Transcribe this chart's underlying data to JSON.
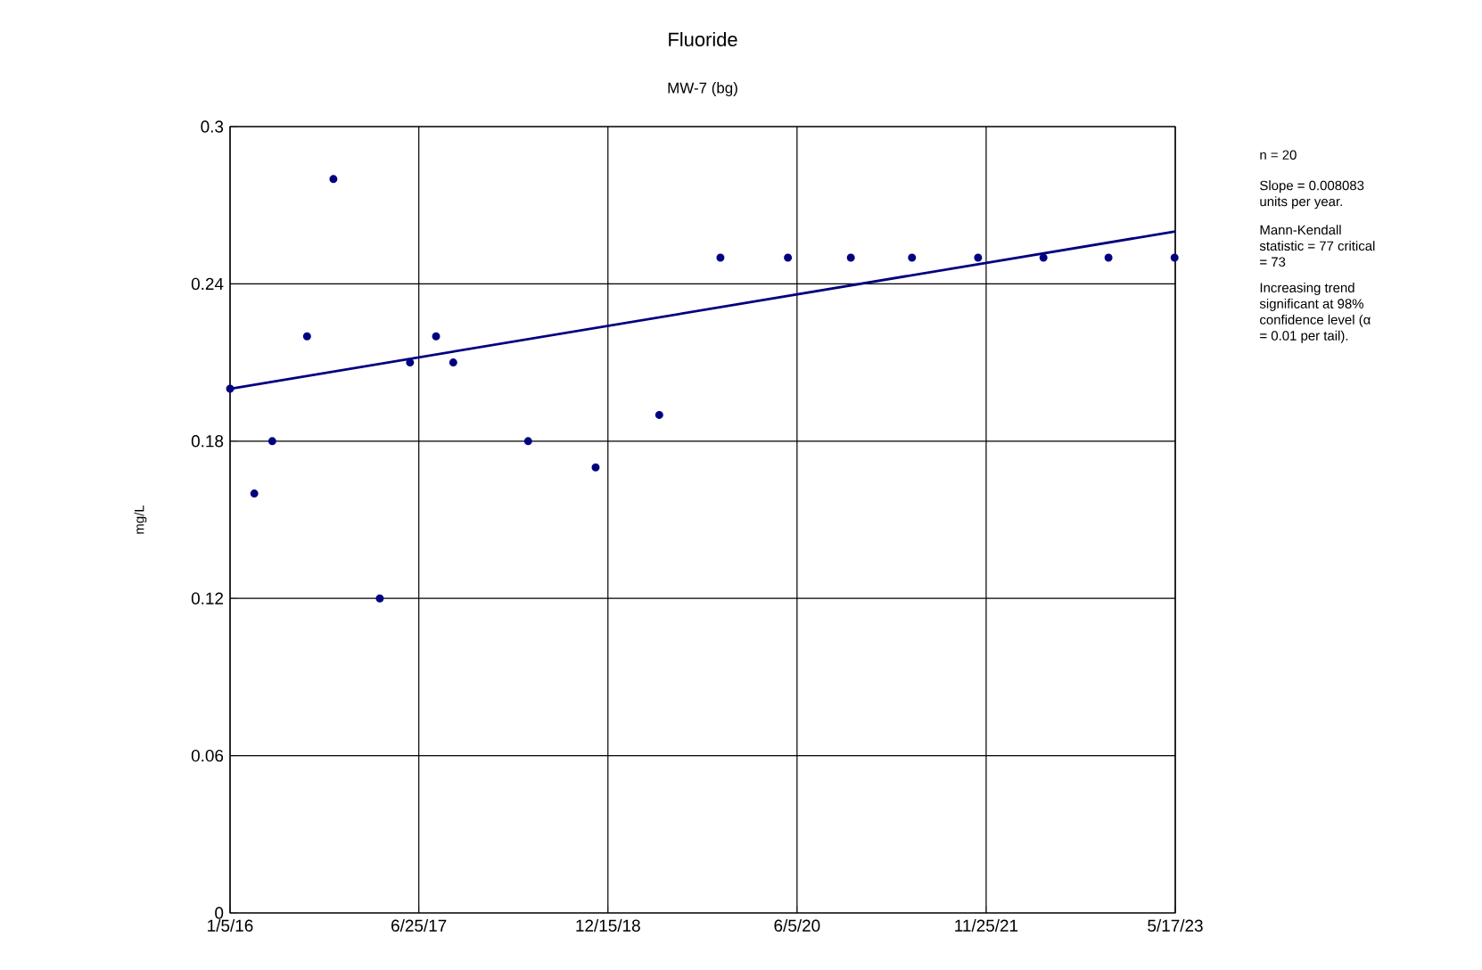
{
  "chart_data": {
    "type": "scatter",
    "title": "Fluoride",
    "subtitle": "MW-7 (bg)",
    "ylabel": "mg/L",
    "xlim": [
      "2016-01-05",
      "2023-05-17"
    ],
    "xticks": [
      {
        "value": "2016-01-05",
        "label": "1/5/16"
      },
      {
        "value": "2017-06-25",
        "label": "6/25/17"
      },
      {
        "value": "2018-12-15",
        "label": "12/15/18"
      },
      {
        "value": "2020-06-05",
        "label": "6/5/20"
      },
      {
        "value": "2021-11-25",
        "label": "11/25/21"
      },
      {
        "value": "2023-05-17",
        "label": "5/17/23"
      }
    ],
    "ylim": [
      0,
      0.3
    ],
    "yticks": [
      0,
      0.06,
      0.12,
      0.18,
      0.24,
      0.3
    ],
    "grid": true,
    "marker": "circle",
    "series": [
      {
        "color": "#000080",
        "x": [
          "2016-03-14",
          "2016-05-04",
          "2016-08-11",
          "2016-10-25",
          "2017-03-06",
          "2017-05-31",
          "2017-08-13",
          "2017-10-01",
          "2018-05-02",
          "2018-11-10",
          "2019-05-10"
        ],
        "values": [
          0.16,
          0.18,
          0.22,
          0.28,
          0.12,
          0.21,
          0.22,
          0.21,
          0.18,
          0.17,
          0.19
        ]
      },
      {
        "color": "#000080",
        "x": [
          "2016-01-05",
          "2019-10-31",
          "2020-05-10",
          "2020-11-05",
          "2021-04-28",
          "2021-11-02",
          "2022-05-07",
          "2022-11-08",
          "2023-05-15"
        ],
        "values": [
          0.2,
          0.25,
          0.25,
          0.25,
          0.25,
          0.25,
          0.25,
          0.25,
          0.25
        ]
      },
      {
        "type": "line",
        "marker": "none",
        "color": "#000080",
        "x": [
          "2016-01-05",
          "2023-05-17"
        ],
        "values": [
          0.2,
          0.26
        ]
      }
    ],
    "annotations": [
      "n = 20",
      "Slope = 0.008083 units per year.",
      "Mann-Kendall statistic = 77 critical = 73",
      "Increasing trend significant at 98% confidence level (α = 0.01 per tail)."
    ]
  }
}
